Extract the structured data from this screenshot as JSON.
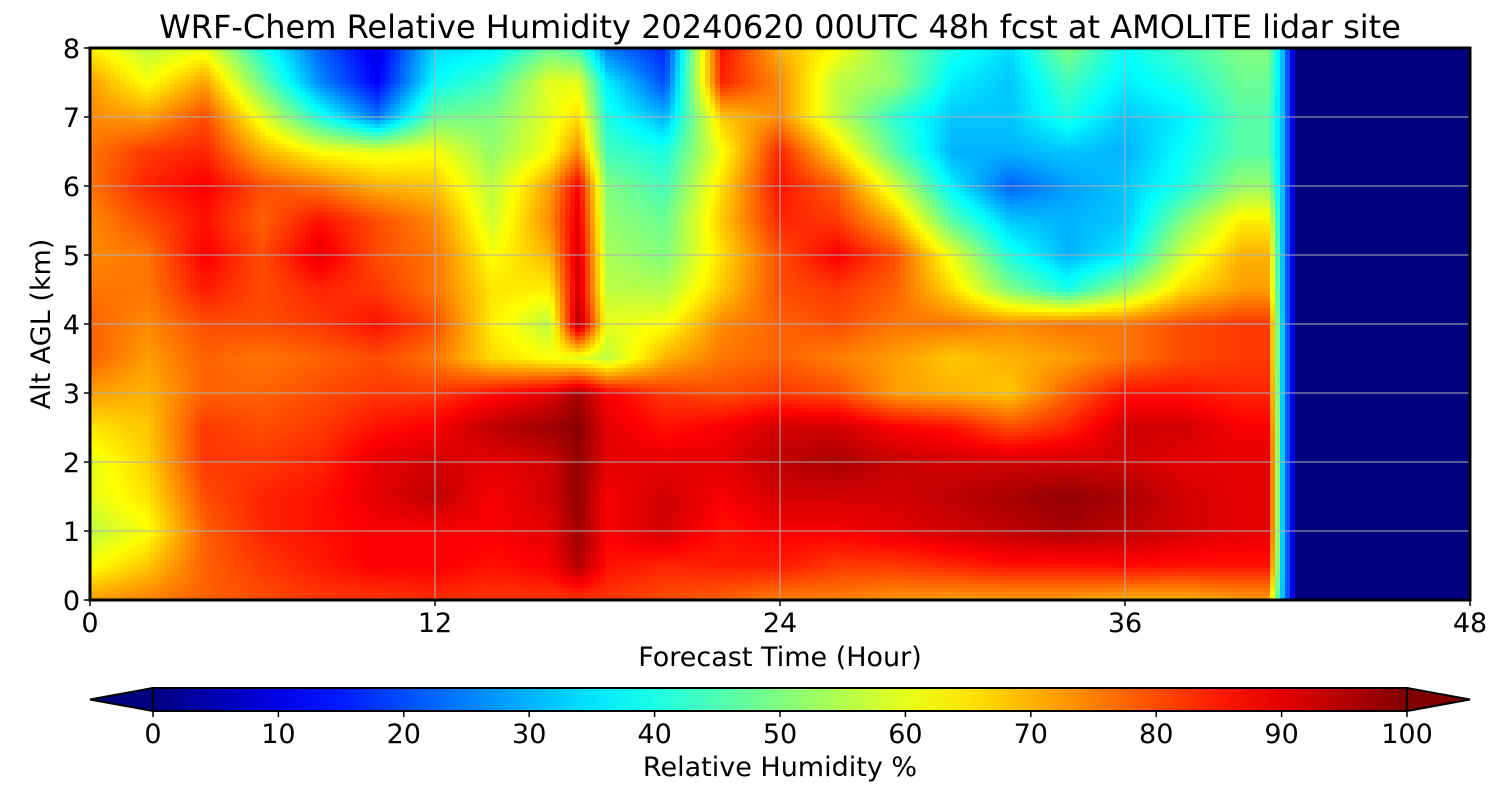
{
  "chart_data": {
    "type": "heatmap",
    "title": "WRF-Chem Relative Humidity 20240620 00UTC 48h fcst at AMOLITE lidar site",
    "xlabel": "Forecast Time (Hour)",
    "ylabel": "Alt AGL (km)",
    "xlim": [
      0,
      48
    ],
    "ylim": [
      0,
      8
    ],
    "xticks": [
      0,
      12,
      24,
      36,
      48
    ],
    "yticks": [
      0,
      1,
      2,
      3,
      4,
      5,
      6,
      7,
      8
    ],
    "grid": true,
    "colormap": "jet",
    "colorbar": {
      "label": "Relative Humidity %",
      "min": 0,
      "max": 100,
      "ticks": [
        0,
        10,
        20,
        30,
        40,
        50,
        60,
        70,
        80,
        90,
        100
      ],
      "extend": "both",
      "orientation": "horizontal"
    },
    "x": [
      0,
      2,
      4,
      6,
      8,
      10,
      12,
      14,
      16,
      17,
      18,
      20,
      22,
      24,
      26,
      28,
      30,
      32,
      34,
      36,
      38,
      40,
      41,
      41.5,
      42,
      48
    ],
    "y": [
      0,
      0.5,
      1,
      1.5,
      2,
      2.5,
      3,
      3.5,
      4,
      4.5,
      5,
      5.5,
      6,
      6.5,
      7,
      7.5,
      8
    ],
    "z": [
      [
        72,
        75,
        78,
        80,
        82,
        82,
        83,
        82,
        82,
        82,
        82,
        80,
        78,
        75,
        75,
        73,
        72,
        72,
        72,
        70,
        70,
        72,
        72,
        30,
        0,
        0
      ],
      [
        62,
        68,
        78,
        82,
        85,
        88,
        88,
        86,
        88,
        95,
        86,
        84,
        85,
        85,
        82,
        82,
        84,
        86,
        86,
        87,
        86,
        86,
        86,
        30,
        0,
        0
      ],
      [
        56,
        62,
        78,
        84,
        86,
        88,
        88,
        88,
        90,
        97,
        88,
        92,
        86,
        88,
        88,
        90,
        92,
        94,
        96,
        94,
        92,
        90,
        90,
        30,
        0,
        0
      ],
      [
        60,
        65,
        80,
        84,
        86,
        90,
        94,
        88,
        92,
        98,
        88,
        92,
        88,
        92,
        92,
        92,
        94,
        96,
        98,
        96,
        92,
        90,
        90,
        30,
        0,
        0
      ],
      [
        60,
        67,
        82,
        82,
        84,
        90,
        92,
        90,
        92,
        98,
        90,
        90,
        90,
        94,
        96,
        93,
        92,
        92,
        92,
        92,
        90,
        90,
        90,
        30,
        0,
        0
      ],
      [
        65,
        68,
        82,
        80,
        82,
        86,
        88,
        94,
        97,
        99,
        90,
        86,
        88,
        92,
        92,
        88,
        86,
        80,
        84,
        92,
        92,
        88,
        88,
        30,
        0,
        0
      ],
      [
        72,
        70,
        78,
        78,
        80,
        82,
        82,
        86,
        90,
        96,
        88,
        82,
        80,
        82,
        80,
        72,
        70,
        68,
        78,
        86,
        86,
        84,
        84,
        30,
        0,
        0
      ],
      [
        78,
        72,
        78,
        76,
        78,
        80,
        76,
        66,
        62,
        60,
        56,
        70,
        76,
        78,
        75,
        72,
        68,
        70,
        72,
        76,
        80,
        82,
        82,
        30,
        0,
        0
      ],
      [
        78,
        74,
        80,
        80,
        82,
        86,
        80,
        64,
        56,
        96,
        60,
        62,
        74,
        78,
        80,
        76,
        76,
        74,
        76,
        76,
        80,
        82,
        82,
        30,
        0,
        0
      ],
      [
        76,
        76,
        85,
        80,
        84,
        82,
        76,
        65,
        64,
        92,
        56,
        55,
        68,
        80,
        82,
        78,
        66,
        50,
        40,
        52,
        66,
        72,
        72,
        30,
        0,
        0
      ],
      [
        74,
        76,
        88,
        80,
        90,
        80,
        76,
        62,
        70,
        92,
        54,
        50,
        66,
        80,
        88,
        80,
        60,
        40,
        30,
        36,
        58,
        70,
        70,
        30,
        0,
        0
      ],
      [
        74,
        80,
        86,
        78,
        86,
        80,
        74,
        58,
        74,
        90,
        52,
        48,
        68,
        84,
        82,
        70,
        46,
        32,
        30,
        32,
        50,
        64,
        64,
        30,
        0,
        0
      ],
      [
        76,
        84,
        88,
        80,
        76,
        70,
        68,
        56,
        72,
        88,
        50,
        44,
        66,
        86,
        78,
        58,
        36,
        22,
        28,
        32,
        40,
        52,
        52,
        30,
        0,
        0
      ],
      [
        76,
        82,
        84,
        70,
        62,
        60,
        62,
        52,
        62,
        74,
        44,
        40,
        62,
        84,
        66,
        46,
        30,
        30,
        32,
        30,
        38,
        46,
        46,
        30,
        0,
        0
      ],
      [
        74,
        72,
        80,
        60,
        40,
        24,
        48,
        50,
        60,
        66,
        40,
        30,
        68,
        74,
        56,
        42,
        32,
        32,
        40,
        32,
        36,
        46,
        46,
        30,
        0,
        0
      ],
      [
        72,
        62,
        72,
        48,
        26,
        12,
        38,
        44,
        60,
        60,
        36,
        20,
        84,
        74,
        56,
        52,
        36,
        32,
        44,
        36,
        40,
        48,
        48,
        30,
        0,
        0
      ],
      [
        64,
        56,
        60,
        40,
        22,
        10,
        34,
        36,
        48,
        44,
        24,
        16,
        86,
        70,
        62,
        50,
        40,
        34,
        50,
        38,
        44,
        50,
        50,
        30,
        0,
        0
      ]
    ]
  }
}
